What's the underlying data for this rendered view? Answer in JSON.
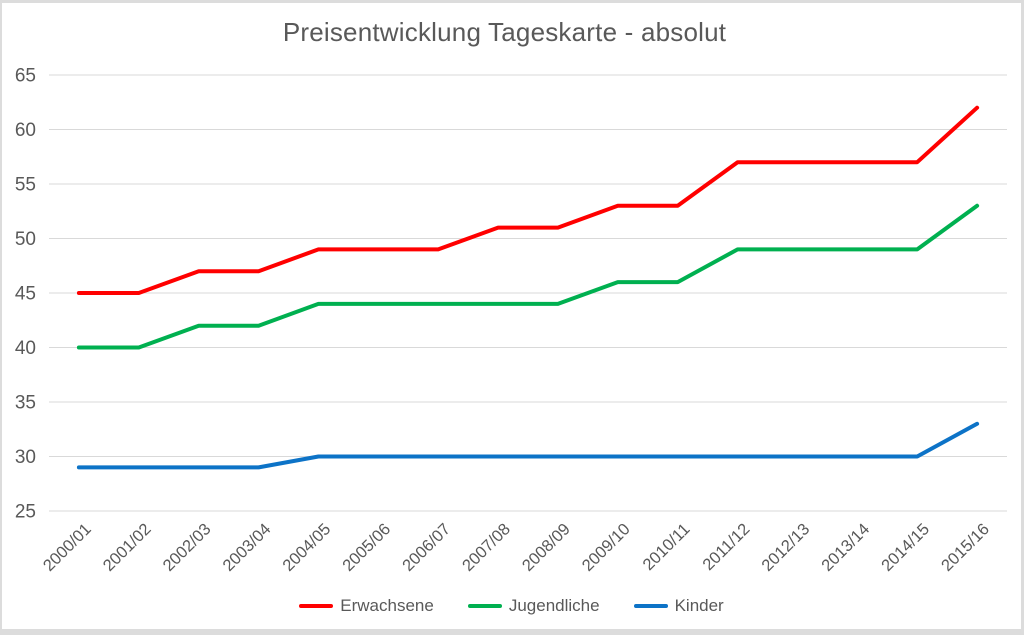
{
  "chart_data": {
    "type": "line",
    "title": "Preisentwicklung Tageskarte - absolut",
    "categories": [
      "2000/01",
      "2001/02",
      "2002/03",
      "2003/04",
      "2004/05",
      "2005/06",
      "2006/07",
      "2007/08",
      "2008/09",
      "2009/10",
      "2010/11",
      "2011/12",
      "2012/13",
      "2013/14",
      "2014/15",
      "2015/16"
    ],
    "series": [
      {
        "name": "Erwachsene",
        "color": "#ff0000",
        "values": [
          45,
          45,
          47,
          47,
          49,
          49,
          49,
          51,
          51,
          53,
          53,
          57,
          57,
          57,
          57,
          62
        ]
      },
      {
        "name": "Jugendliche",
        "color": "#00b050",
        "values": [
          40,
          40,
          42,
          42,
          44,
          44,
          44,
          44,
          44,
          46,
          46,
          49,
          49,
          49,
          49,
          53
        ]
      },
      {
        "name": "Kinder",
        "color": "#0d73c7",
        "values": [
          29,
          29,
          29,
          29,
          30,
          30,
          30,
          30,
          30,
          30,
          30,
          30,
          30,
          30,
          30,
          33
        ]
      }
    ],
    "ylim": [
      25,
      65
    ],
    "yticks": [
      25,
      30,
      35,
      40,
      45,
      50,
      55,
      60,
      65
    ],
    "grid": true,
    "legend_position": "bottom"
  },
  "styles": {
    "text_color": "#595959",
    "grid_color": "#d9d9d9",
    "background": "#ffffff",
    "frame_border": "#dcdcdc",
    "line_width": 4
  }
}
